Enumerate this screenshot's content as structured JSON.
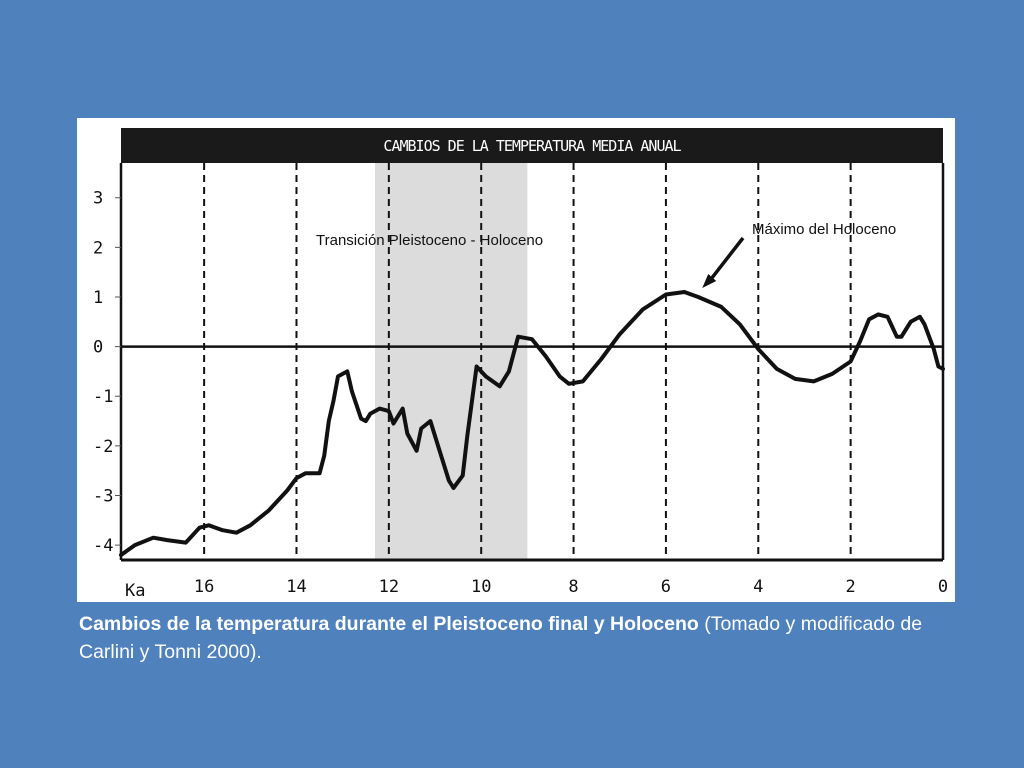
{
  "caption": {
    "bold": "Cambios de la temperatura durante el Pleistoceno final y Holoceno",
    "normal": " (Tomado y modificado de Carlini y Tonni 2000)."
  },
  "colors": {
    "slide_background": "#4f81bd",
    "title_band": "#1a1a1a",
    "transition_band": "#dcdcdc",
    "line": "#111111"
  },
  "chart_data": {
    "type": "line",
    "title": "CAMBIOS DE LA TEMPERATURA MEDIA ANUAL",
    "x_unit_label": "Ka",
    "xlim": [
      17.8,
      0
    ],
    "ylim": [
      -4.3,
      3.7
    ],
    "x_ticks": [
      16,
      14,
      12,
      10,
      8,
      6,
      4,
      2,
      0
    ],
    "x_tick_labels": [
      "16",
      "14",
      "12",
      "10",
      "8",
      "6",
      "4",
      "2",
      "0"
    ],
    "y_ticks": [
      3,
      2,
      1,
      0,
      -1,
      -2,
      -3,
      -4
    ],
    "y_tick_labels": [
      "3",
      "2",
      "1",
      "0",
      "-1",
      "-2",
      "-3",
      "-4"
    ],
    "grid": "dashed vertical lines at x ticks",
    "reference_line": 0,
    "shaded_region": {
      "x": [
        12.3,
        9.0
      ],
      "label": "Transición Pleistoceno - Holoceno"
    },
    "annotations": [
      {
        "text": "Máximo del Holoceno",
        "x": 5.3,
        "y": 1.1,
        "arrow": true
      }
    ],
    "series": [
      {
        "x": [
          17.8,
          17.5,
          17.1,
          16.8,
          16.4,
          16.3,
          16.1,
          15.9,
          15.6,
          15.3,
          15.0,
          14.6,
          14.2,
          14.0,
          13.8,
          13.5,
          13.4,
          13.3,
          13.2,
          13.1,
          12.9,
          12.8,
          12.6,
          12.5,
          12.4,
          12.2,
          12.0,
          11.9,
          11.7,
          11.6,
          11.4,
          11.3,
          11.1,
          10.9,
          10.7,
          10.6,
          10.4,
          10.3,
          10.1,
          9.9,
          9.6,
          9.4,
          9.2,
          8.9,
          8.6,
          8.3,
          8.1,
          7.8,
          7.4,
          7.0,
          6.5,
          6.0,
          5.6,
          5.3,
          4.8,
          4.4,
          4.0,
          3.6,
          3.2,
          2.8,
          2.4,
          2.0,
          1.8,
          1.6,
          1.4,
          1.2,
          1.0,
          0.9,
          0.7,
          0.5,
          0.4,
          0.2,
          0.1,
          0.0
        ],
        "y": [
          -4.2,
          -4.0,
          -3.85,
          -3.9,
          -3.95,
          -3.85,
          -3.65,
          -3.6,
          -3.7,
          -3.75,
          -3.6,
          -3.3,
          -2.9,
          -2.65,
          -2.55,
          -2.55,
          -2.2,
          -1.5,
          -1.1,
          -0.6,
          -0.5,
          -0.9,
          -1.45,
          -1.5,
          -1.35,
          -1.25,
          -1.3,
          -1.55,
          -1.25,
          -1.75,
          -2.1,
          -1.65,
          -1.5,
          -2.1,
          -2.7,
          -2.85,
          -2.6,
          -1.8,
          -0.4,
          -0.6,
          -0.8,
          -0.5,
          0.2,
          0.15,
          -0.2,
          -0.6,
          -0.75,
          -0.7,
          -0.25,
          0.25,
          0.75,
          1.05,
          1.1,
          1.0,
          0.8,
          0.45,
          -0.05,
          -0.45,
          -0.65,
          -0.7,
          -0.55,
          -0.3,
          0.1,
          0.55,
          0.65,
          0.6,
          0.2,
          0.2,
          0.5,
          0.6,
          0.45,
          -0.05,
          -0.4,
          -0.45
        ]
      }
    ]
  }
}
